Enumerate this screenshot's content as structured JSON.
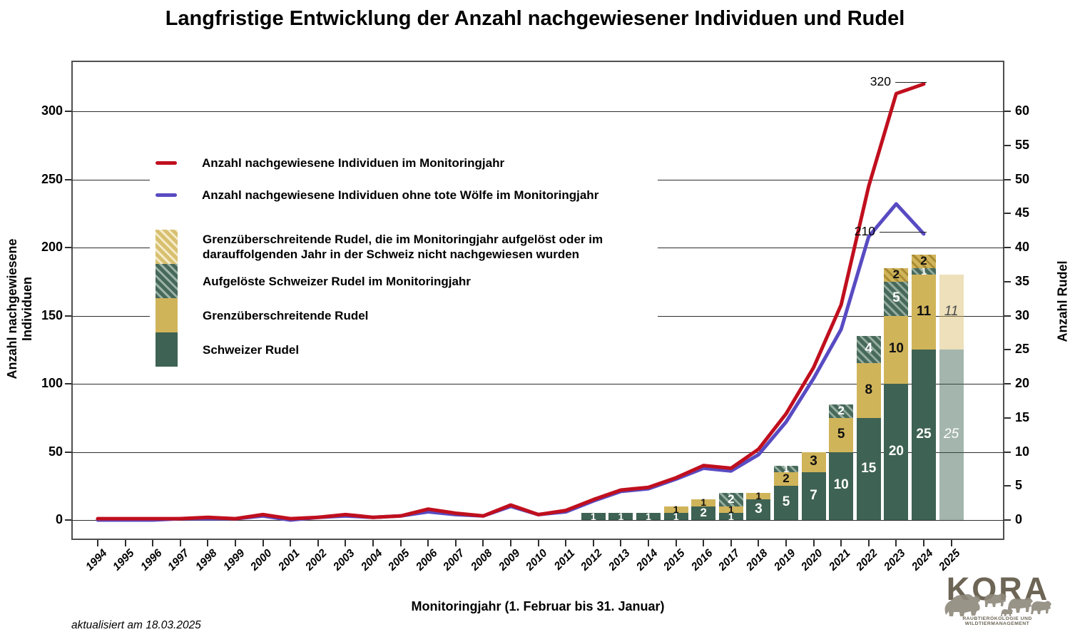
{
  "title": "Langfristige Entwicklung der Anzahl nachgewiesener Individuen und Rudel",
  "updated_note": "aktualisiert am 18.03.2025",
  "axes": {
    "left_label": "Anzahl nachgewiesene Individuen",
    "right_label": "Anzahl Rudel",
    "x_label": "Monitoringjahr (1. Februar bis 31. Januar)",
    "left_ticks": [
      0,
      50,
      100,
      150,
      200,
      250,
      300
    ],
    "right_ticks": [
      0,
      5,
      10,
      15,
      20,
      25,
      30,
      35,
      40,
      45,
      50,
      55,
      60
    ],
    "x_ticks": [
      1994,
      1995,
      1996,
      1997,
      1998,
      1999,
      2000,
      2001,
      2002,
      2003,
      2004,
      2005,
      2006,
      2007,
      2008,
      2009,
      2010,
      2011,
      2012,
      2013,
      2014,
      2015,
      2016,
      2017,
      2018,
      2019,
      2020,
      2021,
      2022,
      2023,
      2024,
      2025
    ]
  },
  "colors": {
    "red_line": "#c00f1e",
    "blue_line": "#584bc2",
    "schweizer": "#3e6253",
    "grenz": "#d0b45a"
  },
  "legend": {
    "lines": [
      {
        "label": "Anzahl nachgewiesene Individuen im Monitoringjahr",
        "color": "#c00f1e"
      },
      {
        "label": "Anzahl nachgewiesene Individuen ohne tote Wölfe im Monitoringjahr",
        "color": "#584bc2"
      }
    ],
    "bars": [
      {
        "label": "Grenzüberschreitende Rudel, die im Monitoringjahr aufgelöst oder im darauffolgenden Jahr in der Schweiz nicht nachgewiesen wurden",
        "style": "sw-grenz-hatch"
      },
      {
        "label": "Aufgelöste Schweizer Rudel im Monitoringjahr",
        "style": "sw-schweizer-hatch"
      },
      {
        "label": "Grenzüberschreitende Rudel",
        "style": "sw-grenz"
      },
      {
        "label": "Schweizer Rudel",
        "style": "sw-schweizer"
      }
    ]
  },
  "annotations": [
    {
      "text": "320",
      "series": "red",
      "year": 2024,
      "value": 320
    },
    {
      "text": "210",
      "series": "blue",
      "year": 2024,
      "value": 210
    }
  ],
  "logo": {
    "word": "KORA",
    "subtitle": "RAUBTIERÖKOLOGIE UND WILDTIERMANAGEMENT"
  },
  "chart_data": {
    "type": "composite",
    "x": [
      1994,
      1995,
      1996,
      1997,
      1998,
      1999,
      2000,
      2001,
      2002,
      2003,
      2004,
      2005,
      2006,
      2007,
      2008,
      2009,
      2010,
      2011,
      2012,
      2013,
      2014,
      2015,
      2016,
      2017,
      2018,
      2019,
      2020,
      2021,
      2022,
      2023,
      2024
    ],
    "series": [
      {
        "name": "Anzahl nachgewiesene Individuen im Monitoringjahr",
        "type": "line",
        "axis": "left",
        "color": "#c00f1e",
        "values": [
          1,
          1,
          1,
          1,
          2,
          1,
          4,
          1,
          2,
          4,
          2,
          3,
          8,
          5,
          3,
          11,
          4,
          7,
          15,
          22,
          24,
          31,
          40,
          38,
          52,
          78,
          112,
          158,
          245,
          313,
          320
        ]
      },
      {
        "name": "Anzahl nachgewiesene Individuen ohne tote Wölfe im Monitoringjahr",
        "type": "line",
        "axis": "left",
        "color": "#584bc2",
        "values": [
          0,
          0,
          0,
          1,
          1,
          1,
          3,
          0,
          2,
          3,
          2,
          3,
          6,
          4,
          3,
          10,
          4,
          6,
          14,
          21,
          23,
          30,
          38,
          36,
          48,
          72,
          104,
          140,
          208,
          232,
          210
        ]
      }
    ],
    "bars": {
      "type": "stacked-bar",
      "axis": "right",
      "unit": "Anzahl Rudel",
      "stack_order_bottom_to_top": [
        "schweizer",
        "grenz",
        "aufgeloest",
        "grenz_aufgeloest"
      ],
      "data": [
        {
          "year": 2012,
          "schweizer": 1
        },
        {
          "year": 2013,
          "schweizer": 1
        },
        {
          "year": 2014,
          "schweizer": 1
        },
        {
          "year": 2015,
          "schweizer": 1,
          "grenz": 1
        },
        {
          "year": 2016,
          "schweizer": 2,
          "grenz": 1
        },
        {
          "year": 2017,
          "schweizer": 1,
          "grenz": 1,
          "aufgeloest": 2
        },
        {
          "year": 2018,
          "schweizer": 3,
          "grenz": 1
        },
        {
          "year": 2019,
          "schweizer": 5,
          "grenz": 2,
          "aufgeloest": 1
        },
        {
          "year": 2020,
          "schweizer": 7,
          "grenz": 3
        },
        {
          "year": 2021,
          "schweizer": 10,
          "grenz": 5,
          "aufgeloest": 2
        },
        {
          "year": 2022,
          "schweizer": 15,
          "grenz": 8,
          "aufgeloest": 4
        },
        {
          "year": 2023,
          "schweizer": 20,
          "grenz": 10,
          "aufgeloest": 5,
          "grenz_aufgeloest": 2
        },
        {
          "year": 2024,
          "schweizer": 25,
          "grenz": 11,
          "aufgeloest": 1,
          "grenz_aufgeloest": 2
        },
        {
          "year": 2025,
          "schweizer": 25,
          "grenz": 11,
          "provisional": true
        }
      ]
    },
    "ylim_left": [
      0,
      335
    ],
    "ylim_right": [
      0,
      67
    ],
    "grid": "horizontal",
    "legend_position": "upper-left-inside"
  }
}
